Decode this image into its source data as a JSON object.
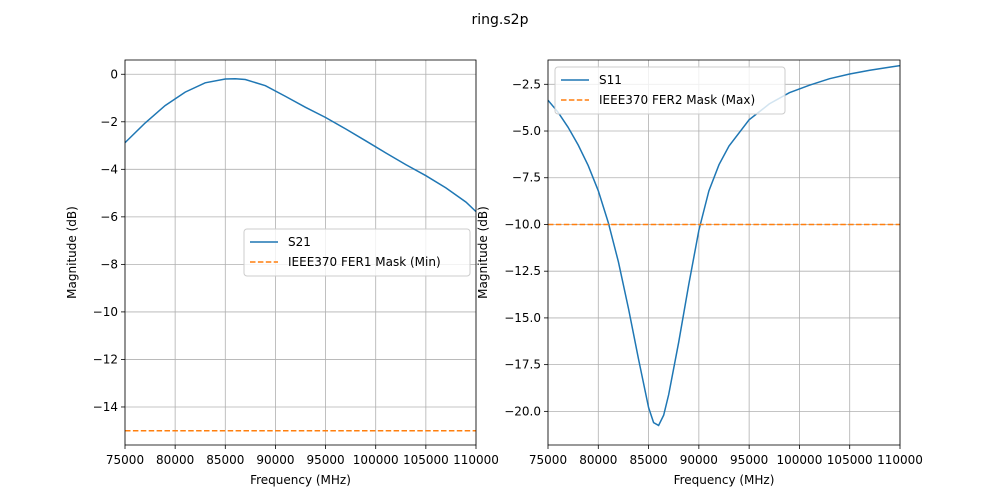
{
  "figure_title": "ring.s2p",
  "colors": {
    "series_a": "#1f77b4",
    "series_b": "#ff7f0e"
  },
  "chart_data": [
    {
      "type": "line",
      "xlabel": "Frequency (MHz)",
      "ylabel": "Magnitude (dB)",
      "xlim": [
        75000,
        110000
      ],
      "ylim": [
        -15.6,
        0.6
      ],
      "xticks": [
        75000,
        80000,
        85000,
        90000,
        95000,
        100000,
        105000,
        110000
      ],
      "xtick_labels": [
        "75000",
        "80000",
        "85000",
        "90000",
        "95000",
        "100000",
        "105000",
        "110000"
      ],
      "yticks": [
        0,
        -2,
        -4,
        -6,
        -8,
        -10,
        -12,
        -14
      ],
      "ytick_labels": [
        "0",
        "−2",
        "−4",
        "−6",
        "−8",
        "−10",
        "−12",
        "−14"
      ],
      "grid": true,
      "legend_position": "center-right",
      "series": [
        {
          "name": "S21",
          "style": "solid",
          "x": [
            75000,
            77000,
            79000,
            81000,
            83000,
            85000,
            86000,
            87000,
            89000,
            91000,
            93000,
            95000,
            97000,
            99000,
            101000,
            103000,
            105000,
            107000,
            109000,
            110000
          ],
          "y": [
            -2.88,
            -2.05,
            -1.32,
            -0.75,
            -0.36,
            -0.2,
            -0.19,
            -0.22,
            -0.48,
            -0.93,
            -1.39,
            -1.82,
            -2.3,
            -2.8,
            -3.31,
            -3.8,
            -4.27,
            -4.78,
            -5.38,
            -5.78
          ]
        },
        {
          "name": "IEEE370 FER1 Mask (Min)",
          "style": "dashed",
          "x": [
            75000,
            110000
          ],
          "y": [
            -15,
            -15
          ]
        }
      ]
    },
    {
      "type": "line",
      "xlabel": "Frequency (MHz)",
      "ylabel": "Magnitude (dB)",
      "xlim": [
        75000,
        110000
      ],
      "ylim": [
        -21.8,
        -1.2
      ],
      "xticks": [
        75000,
        80000,
        85000,
        90000,
        95000,
        100000,
        105000,
        110000
      ],
      "xtick_labels": [
        "75000",
        "80000",
        "85000",
        "90000",
        "95000",
        "100000",
        "105000",
        "110000"
      ],
      "yticks": [
        -2.5,
        -5.0,
        -7.5,
        -10.0,
        -12.5,
        -15.0,
        -17.5,
        -20.0
      ],
      "ytick_labels": [
        "−2.5",
        "−5.0",
        "−7.5",
        "−10.0",
        "−12.5",
        "−15.0",
        "−17.5",
        "−20.0"
      ],
      "grid": true,
      "legend_position": "upper-left",
      "series": [
        {
          "name": "S11",
          "style": "solid",
          "x": [
            75000,
            76000,
            77000,
            78000,
            79000,
            80000,
            81000,
            82000,
            83000,
            84000,
            85000,
            85500,
            86000,
            86500,
            87000,
            88000,
            89000,
            90000,
            91000,
            92000,
            93000,
            95000,
            97000,
            99000,
            101000,
            103000,
            105000,
            107000,
            109000,
            110000
          ],
          "y": [
            -3.35,
            -4.0,
            -4.8,
            -5.75,
            -6.85,
            -8.2,
            -9.9,
            -12.0,
            -14.5,
            -17.2,
            -19.8,
            -20.6,
            -20.75,
            -20.2,
            -19.1,
            -16.3,
            -13.2,
            -10.3,
            -8.2,
            -6.8,
            -5.8,
            -4.4,
            -3.55,
            -2.95,
            -2.55,
            -2.2,
            -1.95,
            -1.75,
            -1.58,
            -1.5
          ]
        },
        {
          "name": "IEEE370 FER2 Mask (Max)",
          "style": "dashed",
          "x": [
            75000,
            110000
          ],
          "y": [
            -10,
            -10
          ]
        }
      ]
    }
  ]
}
